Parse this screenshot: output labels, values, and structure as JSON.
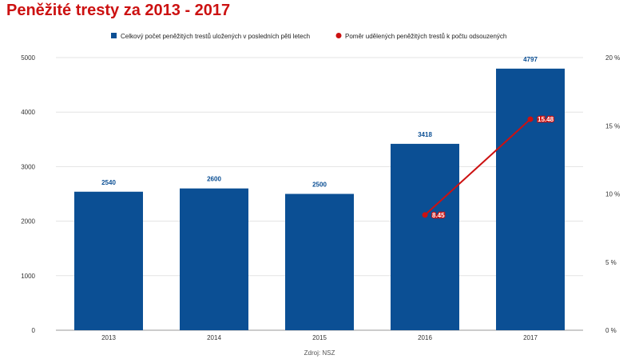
{
  "chart_data": {
    "title": "Peněžité tresty za 2013 - 2017",
    "type": "bar",
    "categories": [
      "2013",
      "2014",
      "2015",
      "2016",
      "2017"
    ],
    "series": [
      {
        "name": "Celkový počet peněžitých trestů uložených v posledních pěti letech",
        "type": "bar",
        "axis": "left",
        "color": "#0b4f94",
        "values": [
          2540,
          2600,
          2500,
          3418,
          4797
        ],
        "labels": [
          "2540",
          "2600",
          "2500",
          "3418",
          "4797"
        ]
      },
      {
        "name": "Poměr udělených peněžitých trestů k počtu odsouzených",
        "type": "line",
        "axis": "right",
        "color": "#cc1111",
        "values": [
          null,
          null,
          null,
          8.45,
          15.48
        ],
        "labels": [
          "",
          "",
          "",
          "8.45",
          "15.48"
        ]
      }
    ],
    "left_axis": {
      "min": 0,
      "max": 5000,
      "ticks": [
        "0",
        "1000",
        "2000",
        "3000",
        "4000",
        "5000"
      ]
    },
    "right_axis": {
      "min": 0,
      "max": 20,
      "ticks": [
        "0 %",
        "5 %",
        "10 %",
        "15 %",
        "20 %"
      ]
    },
    "legend_position": "top",
    "source": "Zdroj: NSZ",
    "grid": true
  }
}
